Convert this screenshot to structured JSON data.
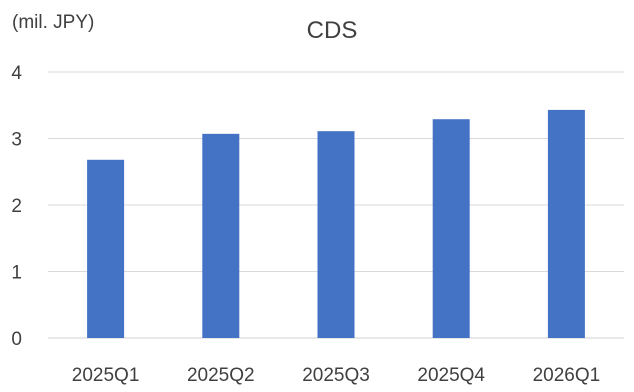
{
  "chart_data": {
    "type": "bar",
    "title": "CDS",
    "unit_label": "(mil. JPY)",
    "xlabel": "",
    "ylabel": "",
    "categories": [
      "2025Q1",
      "2025Q2",
      "2025Q3",
      "2025Q4",
      "2026Q1"
    ],
    "series": [
      {
        "values": [
          2.68,
          3.07,
          3.11,
          3.29,
          3.43
        ]
      }
    ],
    "ylim": [
      0,
      4
    ],
    "yticks": [
      0,
      1,
      2,
      3,
      4
    ],
    "grid": true,
    "legend": "none",
    "colors": {
      "bar": "#4472C4",
      "grid": "#d9d9d9",
      "text": "#404040"
    }
  }
}
